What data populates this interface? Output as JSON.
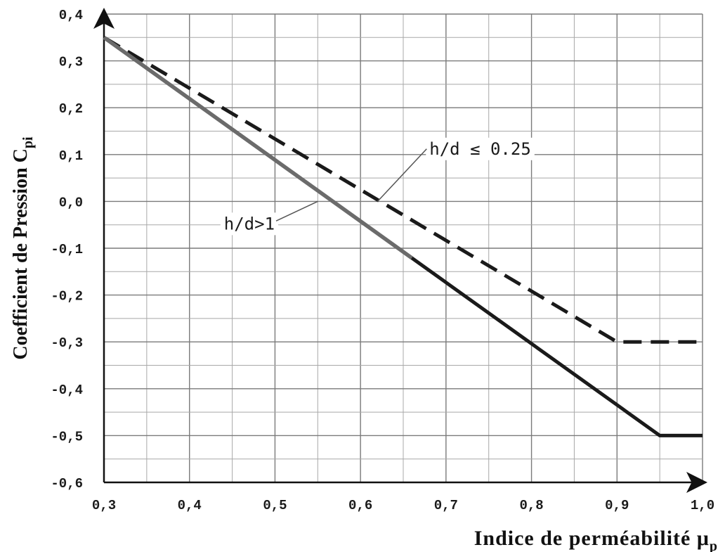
{
  "chart_data": {
    "type": "line",
    "xlabel": "Indice de perméabilité μ",
    "xlabel_subscript": "p",
    "ylabel": "Coefficient de Pression C",
    "ylabel_subscript": "pi",
    "xlim": [
      0.3,
      1.0
    ],
    "ylim": [
      -0.6,
      0.4
    ],
    "x_ticks": [
      "0,3",
      "0,4",
      "0,5",
      "0,6",
      "0,7",
      "0,8",
      "0,9",
      "1,0"
    ],
    "y_ticks": [
      "0,4",
      "0,3",
      "0,2",
      "0,1",
      "0,0",
      "-0,1",
      "-0,2",
      "-0,3",
      "-0,4",
      "-0,5",
      "-0,6"
    ],
    "grid": true,
    "series": [
      {
        "name": "h/d ≤ 0.25",
        "style": "dashed",
        "color": "#1a1a1a",
        "x": [
          0.3,
          0.9,
          1.0
        ],
        "y": [
          0.35,
          -0.3,
          -0.3
        ]
      },
      {
        "name": "h/d>1",
        "style": "solid",
        "color": "#1a1a1a",
        "highlight_color": "#6b6b6b",
        "x": [
          0.3,
          0.95,
          1.0
        ],
        "y": [
          0.35,
          -0.5,
          -0.5
        ]
      }
    ],
    "annotations": [
      {
        "text": "h/d ≤ 0.25",
        "x": 0.74,
        "y": 0.1,
        "points_to_x": 0.62,
        "points_to_y": 0.0
      },
      {
        "text": "h/d>1",
        "x": 0.47,
        "y": -0.06,
        "points_to_x": 0.55,
        "points_to_y": 0.0
      }
    ]
  }
}
